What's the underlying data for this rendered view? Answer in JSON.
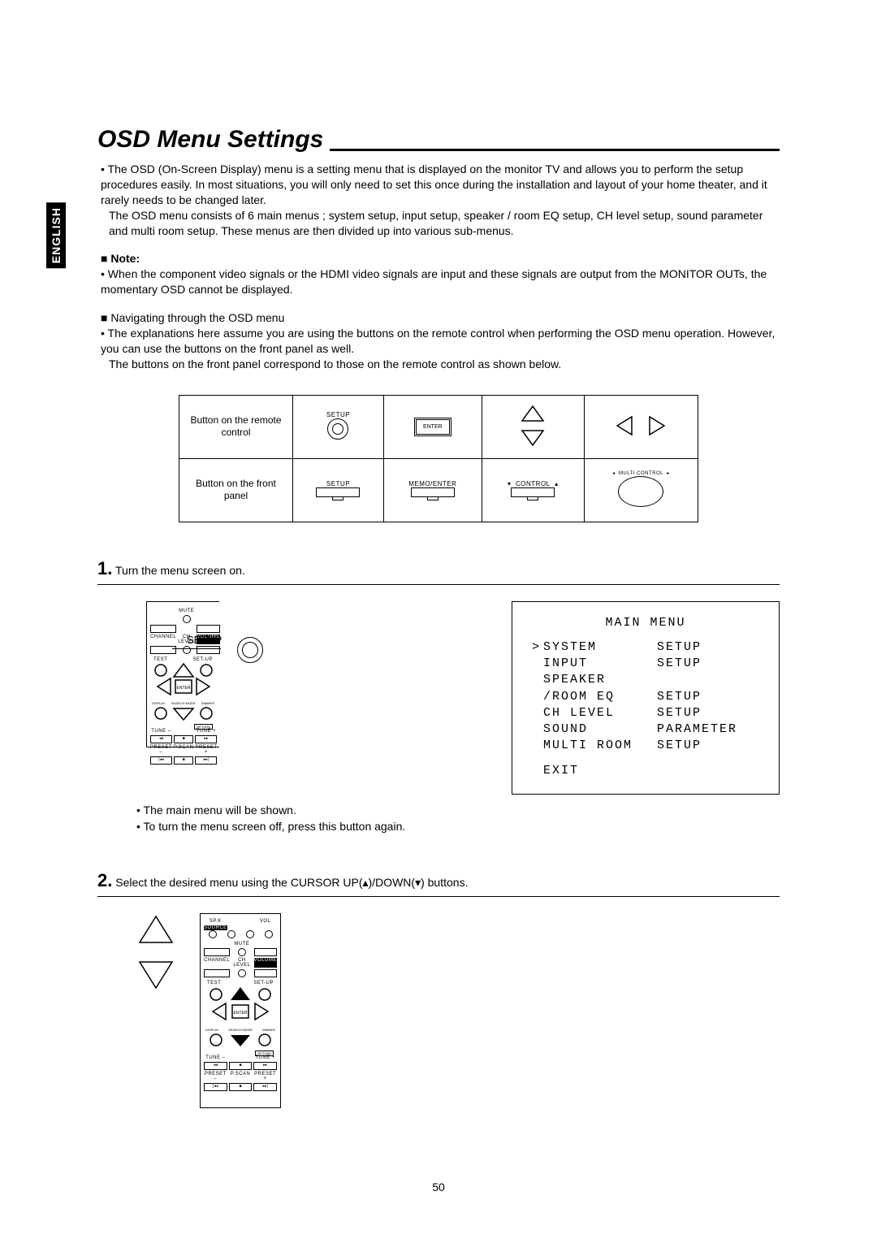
{
  "language_tab": "ENGLISH",
  "title": "OSD Menu Settings",
  "intro_bullet": "The OSD (On-Screen Display) menu is a setting menu that is displayed on the monitor TV and allows you to perform the setup procedures easily. In most situations, you will only need to set this once during the installation and layout of your home theater, and it rarely needs to be changed later.",
  "intro_line2": "The OSD menu consists of 6 main menus ; system setup, input setup, speaker / room EQ setup, CH level setup, sound parameter and multi room setup. These menus are then divided up into various sub-menus.",
  "note_label": "Note:",
  "note_body": "When the component video signals or the HDMI video signals are input and these signals are output from the MONITOR OUTs, the momentary OSD cannot be displayed.",
  "nav_head": "Navigating through the OSD menu",
  "nav_body1": "The explanations here assume you are using the buttons on the remote control when performing the OSD menu operation. However, you can use the buttons on the front panel as well.",
  "nav_body2": "The buttons on the front panel correspond to those on the remote control as shown below.",
  "table": {
    "row1_label": "Button on the remote control",
    "row2_label": "Button on the front panel",
    "setup": "SETUP",
    "enter": "ENTER",
    "memo_enter": "MEMO/ENTER",
    "control": "CONTROL",
    "multi_control": "MULTI CONTROL"
  },
  "step1_num": "1.",
  "step1_text": "Turn the menu screen on.",
  "callout_label": "SETUP",
  "step1_note1": "The main menu will be shown.",
  "step1_note2": "To turn the menu screen off, press this button again.",
  "osd": {
    "title": "MAIN MENU",
    "rows": [
      {
        "p": ">",
        "l": "SYSTEM",
        "r": "SETUP"
      },
      {
        "p": "",
        "l": "INPUT",
        "r": "SETUP"
      },
      {
        "p": "",
        "l": "SPEAKER",
        "r": ""
      },
      {
        "p": "",
        "l": "/ROOM EQ",
        "r": "SETUP"
      },
      {
        "p": "",
        "l": "CH LEVEL",
        "r": "SETUP"
      },
      {
        "p": "",
        "l": "SOUND",
        "r": "PARAMETER"
      },
      {
        "p": "",
        "l": "MULTI ROOM",
        "r": "SETUP"
      }
    ],
    "exit": "EXIT"
  },
  "step2_num": "2.",
  "step2_text": "Select the desired menu using the CURSOR UP(▴)/DOWN(▾) buttons.",
  "page_number": "50",
  "remote_labels": {
    "mute": "MUTE",
    "channel": "CHANNEL",
    "chlevel": "CH LEVEL",
    "volume": "VOLUME",
    "test": "TEST",
    "setup": "SET-UP",
    "memory": "MEMORY",
    "enter": "ENTER",
    "mckey": "MC KEY",
    "display": "DISPLAY",
    "search": "SEARCH MODE",
    "dimmer": "DIMMER",
    "return": "RETURN",
    "tunem": "TUNE –",
    "tunep": "TUNE +",
    "presetm": "PRESET –",
    "pscan": "P.SCAN",
    "presetp": "PRESET +",
    "spk": "SP.K",
    "vol": "VOL",
    "auto": "AUTO",
    "source": "SOURCE"
  }
}
